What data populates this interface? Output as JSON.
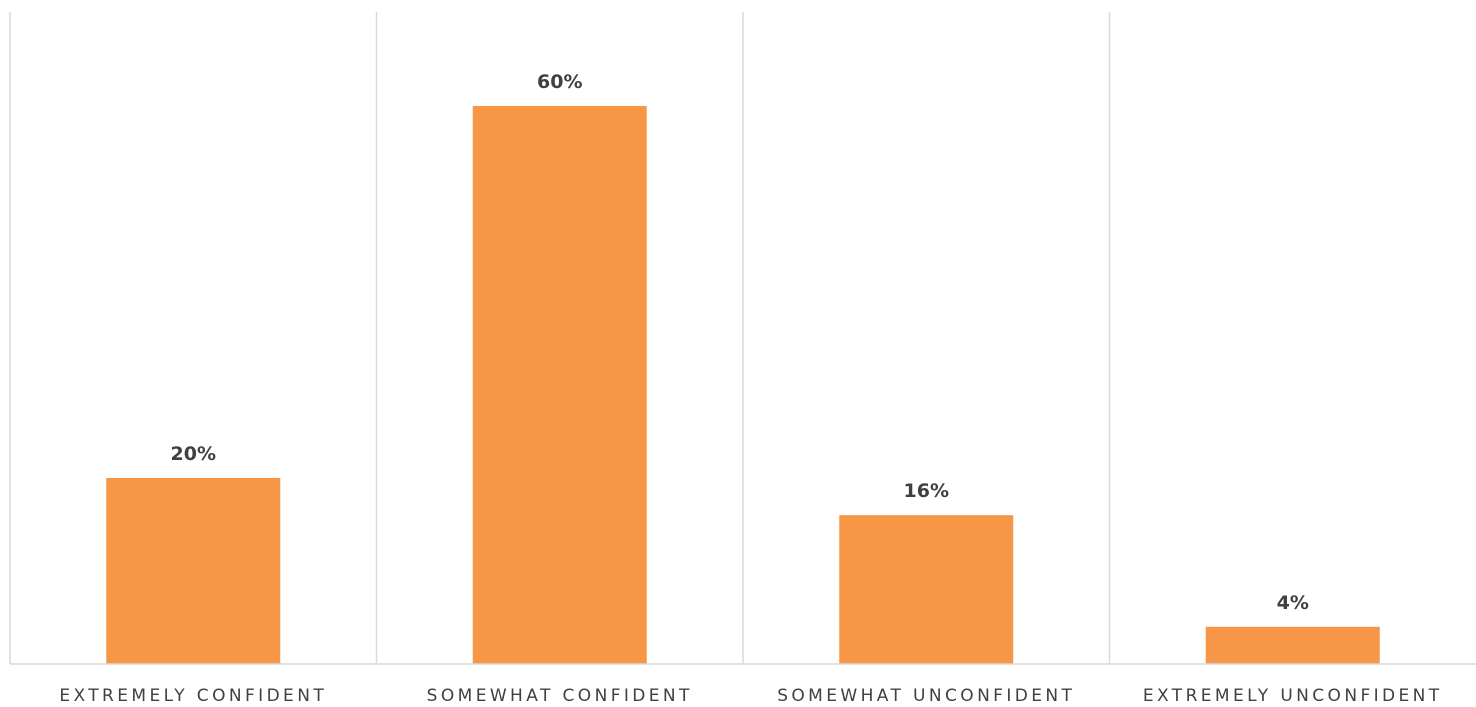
{
  "chart_data": {
    "type": "bar",
    "categories": [
      "EXTREMELY CONFIDENT",
      "SOMEWHAT CONFIDENT",
      "SOMEWHAT UNCONFIDENT",
      "EXTREMELY UNCONFIDENT"
    ],
    "values": [
      20,
      60,
      16,
      4
    ],
    "data_labels": [
      "20%",
      "60%",
      "16%",
      "4%"
    ],
    "title": "",
    "xlabel": "",
    "ylabel": "",
    "ylim": [
      0,
      70
    ],
    "grid": false,
    "legend": "none",
    "bar_color": "#F79646"
  }
}
